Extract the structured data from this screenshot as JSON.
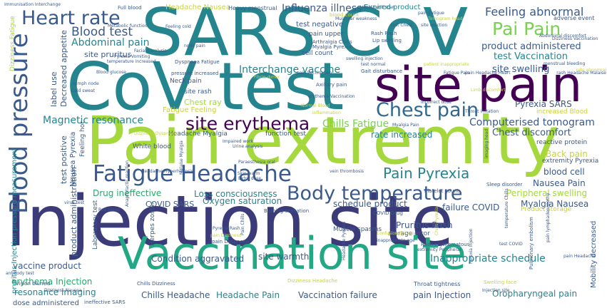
{
  "palette": {
    "navy": "#3b3b7a",
    "indigo": "#4a3f8e",
    "purple": "#440154",
    "blue": "#3a5a8c",
    "teal": "#25858e",
    "tealgreen": "#2a9d8f",
    "green": "#26a96b",
    "emerald": "#22a884",
    "lime": "#7ad151",
    "yellowgreen": "#a5d83c",
    "yellow": "#c8d33a",
    "slate": "#31688e"
  },
  "words": [
    {
      "text": "Injection site",
      "color": "navy"
    },
    {
      "text": "Pain extremity",
      "color": "yellowgreen"
    },
    {
      "text": "SARS CoV",
      "color": "teal"
    },
    {
      "text": "CoV test",
      "color": "teal"
    },
    {
      "text": "Vaccination site",
      "color": "emerald"
    },
    {
      "text": "site pain",
      "color": "purple"
    },
    {
      "text": "Fatigue Headache",
      "color": "blue"
    },
    {
      "text": "Body temperature",
      "color": "blue"
    },
    {
      "text": "Blood pressure",
      "color": "blue"
    },
    {
      "text": "Chest pain",
      "color": "slate"
    },
    {
      "text": "site erythema",
      "color": "purple"
    },
    {
      "text": "Pain Pyrexia",
      "color": "teal"
    },
    {
      "text": "Heart rate",
      "color": "blue"
    },
    {
      "text": "Pai Pain",
      "color": "lime"
    },
    {
      "text": "Blood test",
      "color": "blue"
    },
    {
      "text": "Abdominal pain",
      "color": "teal"
    },
    {
      "text": "Feeling abnormal",
      "color": "blue"
    },
    {
      "text": "Influenza illness",
      "color": "blue"
    },
    {
      "text": "Computerised tomogram",
      "color": "blue"
    },
    {
      "text": "Magnetic resonance",
      "color": "teal"
    },
    {
      "text": "Chills Fatigue",
      "color": "lime"
    },
    {
      "text": "Interchange vaccine",
      "color": "teal"
    },
    {
      "text": "product administered",
      "color": "blue"
    },
    {
      "text": "test Vaccination",
      "color": "teal"
    },
    {
      "text": "site swelling",
      "color": "blue"
    },
    {
      "text": "Pyrexia SARS",
      "color": "blue"
    },
    {
      "text": "Chest discomfort",
      "color": "blue"
    },
    {
      "text": "Back pain",
      "color": "yellow"
    },
    {
      "text": "Nausea Pain",
      "color": "blue"
    },
    {
      "text": "blood cell",
      "color": "blue"
    },
    {
      "text": "Peripheral swelling",
      "color": "yellowgreen"
    },
    {
      "text": "Myalgia Nausea",
      "color": "blue"
    },
    {
      "text": "rate increased",
      "color": "teal"
    },
    {
      "text": "Drug ineffective",
      "color": "green"
    },
    {
      "text": "Loss consciousness",
      "color": "teal"
    },
    {
      "text": "COVID SARS",
      "color": "blue"
    },
    {
      "text": "Oxygen saturation",
      "color": "teal"
    },
    {
      "text": "schedule product",
      "color": "blue"
    },
    {
      "text": "failure COVID",
      "color": "blue"
    },
    {
      "text": "Pruritus Rash",
      "color": "blue"
    },
    {
      "text": "Inappropriate schedule",
      "color": "teal"
    },
    {
      "text": "Condition aggravated",
      "color": "blue"
    },
    {
      "text": "site warmth",
      "color": "blue"
    },
    {
      "text": "vaccine product",
      "color": "blue"
    },
    {
      "text": "erythema Injection",
      "color": "green"
    },
    {
      "text": "resonance imaging",
      "color": "teal"
    },
    {
      "text": "Chills Headache",
      "color": "blue"
    },
    {
      "text": "Headache Pain",
      "color": "teal"
    },
    {
      "text": "Vaccination failure",
      "color": "blue"
    },
    {
      "text": "pain Injection",
      "color": "blue"
    },
    {
      "text": "Oropharyngeal pain",
      "color": "teal"
    },
    {
      "text": "dose administered",
      "color": "blue"
    },
    {
      "text": "site pruritus",
      "color": "blue"
    },
    {
      "text": "test negative",
      "color": "blue"
    },
    {
      "text": "pain upper",
      "color": "blue"
    },
    {
      "text": "cell count",
      "color": "blue"
    },
    {
      "text": "Chest ray",
      "color": "yellowgreen"
    },
    {
      "text": "Fatigue Feeling",
      "color": "yellow"
    },
    {
      "text": "Headache Myalgia",
      "color": "blue"
    },
    {
      "text": "function test",
      "color": "blue"
    },
    {
      "text": "White blood",
      "color": "blue"
    },
    {
      "text": "Neck pain",
      "color": "blue"
    },
    {
      "text": "site rash",
      "color": "blue"
    },
    {
      "text": "Expired product",
      "color": "teal"
    },
    {
      "text": "Headache Nausea",
      "color": "yellow"
    },
    {
      "text": "Heavy menstrual",
      "color": "blue"
    },
    {
      "text": "Full blood",
      "color": "blue"
    },
    {
      "text": "Muscle spasms",
      "color": "blue"
    },
    {
      "text": "Herpes zoster",
      "color": "blue"
    },
    {
      "text": "storage error",
      "color": "blue"
    },
    {
      "text": "Product storage",
      "color": "yellow"
    },
    {
      "text": "extremity Pyrexia",
      "color": "blue"
    },
    {
      "text": "increased Blood",
      "color": "yellow"
    },
    {
      "text": "reactive protein",
      "color": "blue"
    },
    {
      "text": "Immunisation Interchange",
      "color": "blue"
    },
    {
      "text": "Rash Rash",
      "color": "blue"
    },
    {
      "text": "Lip swelling",
      "color": "blue"
    },
    {
      "text": "Arthralgia Chills",
      "color": "blue"
    },
    {
      "text": "Myalgia Pyrexia",
      "color": "blue"
    },
    {
      "text": "Ultrasound scan",
      "color": "blue"
    },
    {
      "text": "blood count",
      "color": "yellow"
    },
    {
      "text": "Muscular weakness",
      "color": "blue"
    },
    {
      "text": "test Chest",
      "color": "blue"
    },
    {
      "text": "adverse event",
      "color": "blue"
    },
    {
      "text": "Gait disturbance",
      "color": "blue"
    },
    {
      "text": "Axillary pain",
      "color": "blue"
    },
    {
      "text": "Dyspnoea Fatigue",
      "color": "blue"
    },
    {
      "text": "Blood glucose",
      "color": "blue"
    },
    {
      "text": "pressure increased",
      "color": "blue"
    },
    {
      "text": "Decreased appetite",
      "color": "blue"
    },
    {
      "text": "label use",
      "color": "blue"
    },
    {
      "text": "test positive",
      "color": "blue"
    },
    {
      "text": "Nausea Pyrexia",
      "color": "blue"
    },
    {
      "text": "Feeling hot",
      "color": "blue"
    },
    {
      "text": "product administration",
      "color": "blue"
    },
    {
      "text": "pruritus Injection pressure measurement",
      "color": "teal"
    },
    {
      "text": "Laboratory test",
      "color": "blue"
    },
    {
      "text": "Throat tightness",
      "color": "blue"
    },
    {
      "text": "COVID Drug",
      "color": "blue"
    },
    {
      "text": "Burning sensation",
      "color": "blue"
    },
    {
      "text": "Platelet count",
      "color": "blue"
    },
    {
      "text": "Sleep disorder",
      "color": "blue"
    },
    {
      "text": "Mobility decreased",
      "color": "blue"
    },
    {
      "text": "Pulmonary embolism",
      "color": "blue"
    },
    {
      "text": "Dizziness Headache",
      "color": "yellow"
    },
    {
      "text": "Swelling face",
      "color": "yellow"
    },
    {
      "text": "Chills Dizziness",
      "color": "blue"
    },
    {
      "text": "Vision blurred",
      "color": "blue"
    },
    {
      "text": "ineffective SARS",
      "color": "blue"
    },
    {
      "text": "antibody test",
      "color": "blue"
    },
    {
      "text": "pain Dyspnoea",
      "color": "blue"
    },
    {
      "text": "Rash erythematous",
      "color": "blue"
    },
    {
      "text": "extremity Peripheral",
      "color": "blue"
    },
    {
      "text": "Dizziness Fatigue",
      "color": "yellowgreen"
    },
    {
      "text": "Metabolic function",
      "color": "blue"
    },
    {
      "text": "Feeling cold",
      "color": "blue"
    },
    {
      "text": "Facial paralysis",
      "color": "blue"
    },
    {
      "text": "Cold sweat",
      "color": "blue"
    },
    {
      "text": "Lymph node",
      "color": "blue"
    },
    {
      "text": "Pyrexia Vomiting",
      "color": "blue"
    },
    {
      "text": "temperature increased",
      "color": "blue"
    },
    {
      "text": "Headache Hyperhidrosis",
      "color": "blue"
    },
    {
      "text": "Skin warm",
      "color": "blue"
    },
    {
      "text": "Extra dose",
      "color": "blue"
    },
    {
      "text": "vein thrombosis",
      "color": "blue"
    },
    {
      "text": "Impaired work",
      "color": "blue"
    },
    {
      "text": "Urine analysis",
      "color": "blue"
    },
    {
      "text": "Dizziness Dyspnoea",
      "color": "yellow"
    },
    {
      "text": "pain Headache Heart",
      "color": "blue"
    },
    {
      "text": "menstrual bleeding",
      "color": "blue"
    },
    {
      "text": "Abdominal discomfort",
      "color": "blue"
    },
    {
      "text": "Limb discomfort",
      "color": "yellow"
    },
    {
      "text": "Throat irritation",
      "color": "blue"
    },
    {
      "text": "Incorrect dose",
      "color": "blue"
    },
    {
      "text": "Myalgia Pain",
      "color": "blue"
    },
    {
      "text": "imaging head",
      "color": "blue"
    },
    {
      "text": "rash Headache Malaise",
      "color": "blue"
    },
    {
      "text": "pain Headache",
      "color": "blue"
    },
    {
      "text": "test COVID",
      "color": "blue"
    },
    {
      "text": "Confusional state",
      "color": "yellow"
    },
    {
      "text": "pain lymphadenopathy",
      "color": "blue"
    },
    {
      "text": "Tomogram head",
      "color": "yellow"
    },
    {
      "text": "site reaction",
      "color": "blue"
    },
    {
      "text": "pain Fatigue",
      "color": "blue"
    },
    {
      "text": "Pyrexia Rash",
      "color": "blue"
    },
    {
      "text": "pain Dizziness",
      "color": "yellow"
    },
    {
      "text": "inappropriate age",
      "color": "blue"
    },
    {
      "text": "Paraesthesia oral",
      "color": "blue"
    },
    {
      "text": "Malaise Myalgia",
      "color": "blue"
    },
    {
      "text": "Chills Pyrexia",
      "color": "yellow"
    },
    {
      "text": "Pain Chills",
      "color": "blue"
    },
    {
      "text": "node pain",
      "color": "blue"
    },
    {
      "text": "test normal",
      "color": "blue"
    },
    {
      "text": "patient inappropriate",
      "color": "yellow"
    },
    {
      "text": "Fatigue Pain",
      "color": "blue"
    },
    {
      "text": "pain Vaccination",
      "color": "blue"
    },
    {
      "text": "Fibrin dimer",
      "color": "yellow"
    },
    {
      "text": "swelling injection",
      "color": "blue"
    },
    {
      "text": "erythema Vaccination",
      "color": "blue"
    },
    {
      "text": "Normal Blood",
      "color": "yellow"
    },
    {
      "text": "inflammation",
      "color": "yellow"
    },
    {
      "text": "Anaphylactic reaction",
      "color": "blue"
    },
    {
      "text": "Headache Pyrexia",
      "color": "blue"
    },
    {
      "text": "Injection site",
      "color": "blue"
    },
    {
      "text": "temperature Chills",
      "color": "blue"
    },
    {
      "text": "Pyrexia Injection",
      "color": "blue"
    },
    {
      "text": "Dizziness Nausea",
      "color": "blue"
    },
    {
      "text": "virus test",
      "color": "blue"
    },
    {
      "text": "Red blood",
      "color": "blue"
    },
    {
      "text": "rate abnormal",
      "color": "yellow"
    },
    {
      "text": "Dizziness Vaccination",
      "color": "blue"
    }
  ]
}
